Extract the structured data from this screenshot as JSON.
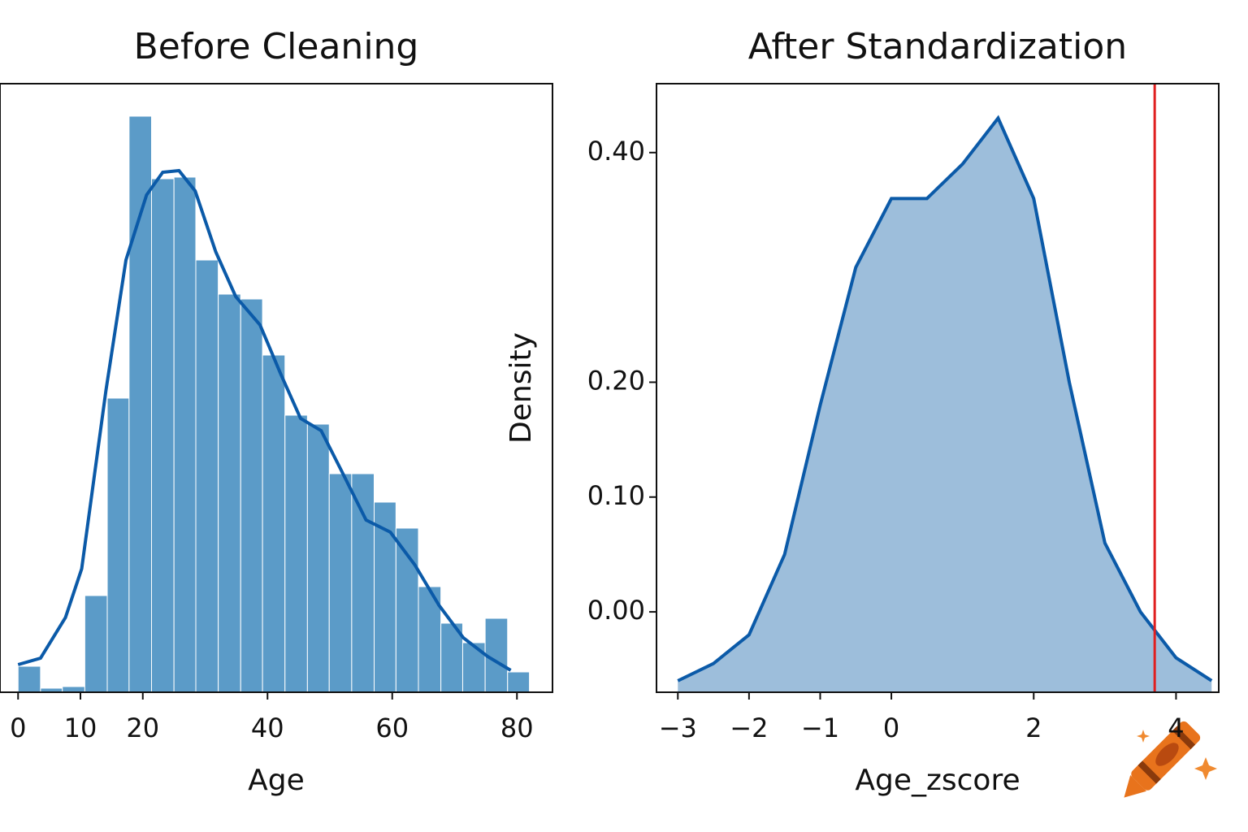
{
  "chart_data": [
    {
      "type": "histogram",
      "title": "Before Cleaning",
      "xlabel": "Age",
      "bins": [
        0,
        3.6,
        7.1,
        10.7,
        14.3,
        17.8,
        21.4,
        25,
        28.5,
        32.1,
        35.7,
        39.2,
        42.8,
        46.4,
        49.9,
        53.5,
        57.1,
        60.6,
        64.2,
        67.8,
        71.3,
        74.9,
        78.5,
        82
      ],
      "counts": [
        3.2,
        0.5,
        0.7,
        11.9,
        36.2,
        70.9,
        63.2,
        63.4,
        53.2,
        49,
        48.4,
        41.5,
        34.1,
        33,
        26.9,
        26.9,
        23.4,
        20.2,
        13,
        8.5,
        6.1,
        9.1,
        2.5
      ],
      "color": "#5b9bc8",
      "kde": {
        "x": [
          0,
          3.6,
          7.6,
          10.2,
          14.1,
          17.3,
          20.6,
          23.2,
          25.8,
          28.4,
          31.7,
          34.9,
          38.8,
          42.1,
          45.3,
          48.6,
          51.9,
          55.8,
          59.7,
          63.6,
          67.5,
          71.4,
          75.3,
          79
        ],
        "y": [
          3.4,
          4.2,
          9.2,
          15.2,
          37.2,
          53.2,
          61.2,
          64,
          64.2,
          61.7,
          54.2,
          48.7,
          45.2,
          39.2,
          33.7,
          32.2,
          27.2,
          21.2,
          19.7,
          15.7,
          10.7,
          6.7,
          4.4,
          2.7
        ],
        "color": "#0b5aa8"
      },
      "xlim": [
        -2.9,
        85.7
      ],
      "ylim": [
        0,
        74.9
      ],
      "xticks": [
        0,
        10,
        20,
        40,
        60,
        80
      ]
    },
    {
      "type": "area",
      "title": "After Standardization",
      "xlabel": "Age_zscore",
      "ylabel": "Density",
      "x": [
        -3,
        -2.5,
        -2,
        -1.5,
        -1,
        -0.5,
        0,
        0.5,
        1,
        1.5,
        2,
        2.5,
        3,
        3.5,
        4,
        4.5
      ],
      "values": [
        -0.06,
        -0.045,
        -0.02,
        0.05,
        0.18,
        0.3,
        0.36,
        0.36,
        0.39,
        0.43,
        0.36,
        0.2,
        0.06,
        0.0,
        -0.04,
        -0.06
      ],
      "color": "#9dbedb",
      "line_color": "#0b5aa8",
      "threshold_line": {
        "x": 3.7,
        "color": "#e02020"
      },
      "xlim": [
        -3.3,
        4.6
      ],
      "ylim": [
        -0.07,
        0.46
      ],
      "xticks": [
        {
          "value": -3,
          "label": "−3"
        },
        {
          "value": -2,
          "label": "−2"
        },
        {
          "value": -1,
          "label": "−1"
        },
        0,
        2,
        4
      ],
      "yticks": [
        {
          "value": 0,
          "label": "0.00"
        },
        {
          "value": 0.1,
          "label": "0.10"
        },
        {
          "value": 0.2,
          "label": "0.20"
        },
        {
          "value": 0.4,
          "label": "0.40"
        }
      ]
    }
  ]
}
